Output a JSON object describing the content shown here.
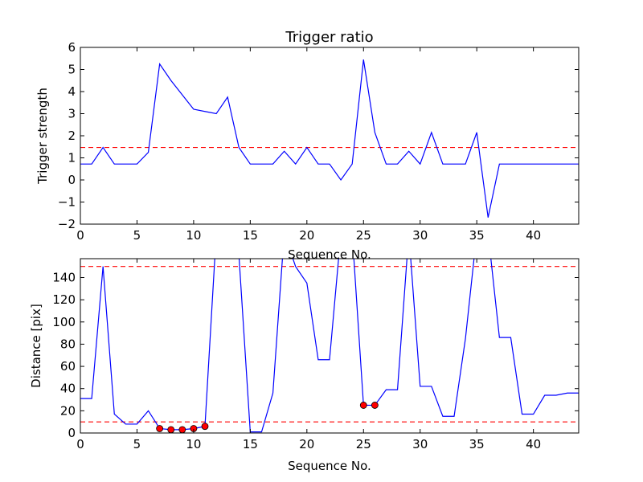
{
  "chart_data": [
    {
      "type": "line",
      "title": "Trigger ratio",
      "xlabel": "Sequence No.",
      "ylabel": "Trigger strength",
      "xlim": [
        0,
        44
      ],
      "ylim": [
        -2,
        6
      ],
      "xticks": [
        0,
        5,
        10,
        15,
        20,
        25,
        30,
        35,
        40
      ],
      "yticks": [
        -2,
        -1,
        0,
        1,
        2,
        3,
        4,
        5,
        6
      ],
      "ytick_labels": [
        "−2",
        "−1",
        "0",
        "1",
        "2",
        "3",
        "4",
        "5",
        "6"
      ],
      "grid": false,
      "series": [
        {
          "color": "#0000ff",
          "x": [
            0,
            1,
            2,
            3,
            4,
            5,
            6,
            7,
            8,
            9,
            10,
            11,
            12,
            13,
            14,
            15,
            16,
            17,
            18,
            19,
            20,
            21,
            22,
            23,
            24,
            25,
            26,
            27,
            28,
            29,
            30,
            31,
            32,
            33,
            34,
            35,
            36,
            37,
            38,
            39,
            40,
            41,
            42,
            43,
            44
          ],
          "y": [
            0.72,
            0.72,
            1.47,
            0.72,
            0.72,
            0.72,
            1.25,
            5.25,
            4.5,
            3.85,
            3.2,
            3.1,
            3.0,
            3.75,
            1.47,
            0.72,
            0.72,
            0.72,
            1.3,
            0.72,
            1.47,
            0.72,
            0.72,
            0.0,
            0.72,
            5.45,
            2.15,
            0.72,
            0.72,
            1.3,
            0.72,
            2.15,
            0.72,
            0.72,
            0.72,
            2.15,
            -1.7,
            0.72,
            0.72,
            0.72,
            0.72,
            0.72,
            0.72,
            0.72,
            0.72
          ]
        }
      ],
      "hlines": [
        {
          "y": 1.47,
          "color": "#ff0000",
          "style": "dashed"
        }
      ]
    },
    {
      "type": "line",
      "title": "",
      "xlabel": "Sequence No.",
      "ylabel": "Distance [pix]",
      "xlim": [
        0,
        44
      ],
      "ylim": [
        0,
        157
      ],
      "xticks": [
        0,
        5,
        10,
        15,
        20,
        25,
        30,
        35,
        40
      ],
      "yticks": [
        0,
        20,
        40,
        60,
        80,
        100,
        120,
        140
      ],
      "grid": false,
      "series": [
        {
          "color": "#0000ff",
          "x": [
            0,
            1,
            2,
            3,
            4,
            5,
            6,
            7,
            8,
            9,
            10,
            11,
            12,
            13,
            14,
            15,
            16,
            17,
            18,
            19,
            20,
            21,
            22,
            23,
            24,
            25,
            26,
            27,
            28,
            29,
            30,
            31,
            32,
            33,
            34,
            35,
            36,
            37,
            38,
            39,
            40,
            41,
            42,
            43,
            44
          ],
          "y": [
            31,
            31,
            150,
            17,
            8,
            8,
            20,
            4,
            3,
            3,
            4,
            6,
            180,
            180,
            160,
            1,
            1,
            36,
            180,
            150,
            135,
            66,
            66,
            180,
            180,
            25,
            25,
            39,
            39,
            180,
            42,
            42,
            15,
            15,
            85,
            180,
            180,
            86,
            86,
            17,
            17,
            34,
            34,
            36,
            36
          ]
        }
      ],
      "markers": {
        "color": "#ff0000",
        "x": [
          7,
          8,
          9,
          10,
          11,
          25,
          26
        ],
        "y": [
          4,
          3,
          3,
          4,
          6,
          25,
          25
        ]
      },
      "hlines": [
        {
          "y": 150,
          "color": "#ff0000",
          "style": "dashed"
        },
        {
          "y": 10,
          "color": "#ff0000",
          "style": "dashed"
        }
      ]
    }
  ]
}
